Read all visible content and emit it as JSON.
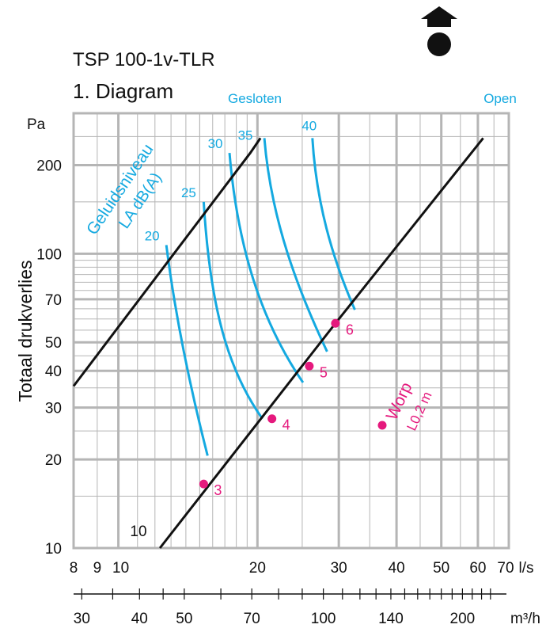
{
  "header": {
    "product": "TSP 100-1v-TLR",
    "diagram_label": "1. Diagram",
    "nav_icon": "home-up-icon"
  },
  "chart_data": {
    "type": "line",
    "x_axis": {
      "unit": "l/s",
      "scale": "log",
      "range": [
        8,
        70
      ],
      "tick_labels": [
        "8",
        "9",
        "10",
        "20",
        "30",
        "40",
        "50",
        "60",
        "70"
      ],
      "tick_values": [
        8,
        9,
        10,
        20,
        30,
        40,
        50,
        60,
        70
      ]
    },
    "x2_axis": {
      "unit": "m³/h",
      "scale": "log",
      "tick_labels": [
        "30",
        "40",
        "50",
        "70",
        "100",
        "140",
        "200"
      ],
      "tick_values": [
        30,
        40,
        50,
        70,
        100,
        140,
        200
      ]
    },
    "y_axis": {
      "label": "Totaal drukverlies",
      "unit": "Pa",
      "scale": "log",
      "range": [
        10,
        300
      ],
      "tick_labels": [
        "10",
        "20",
        "30",
        "40",
        "50",
        "70",
        "100",
        "200"
      ],
      "tick_values": [
        10,
        20,
        30,
        40,
        50,
        70,
        100,
        200
      ]
    },
    "grid": true,
    "series": [
      {
        "name": "Gesloten",
        "color": "#111111",
        "points": [
          [
            8.0,
            35.5
          ],
          [
            19.3,
            220
          ],
          [
            20.3,
            247
          ]
        ]
      },
      {
        "name": "Open",
        "color": "#111111",
        "points": [
          [
            12.3,
            10
          ],
          [
            29.5,
            58
          ],
          [
            61.6,
            247
          ]
        ]
      }
    ],
    "sound_label": "Geluidsniveau L_A dB(A)",
    "sound_curves": [
      {
        "label": "20",
        "points": [
          [
            12.7,
            107
          ],
          [
            13.5,
            50
          ],
          [
            15.6,
            20.6
          ]
        ]
      },
      {
        "label": "25",
        "points": [
          [
            15.3,
            150
          ],
          [
            15.8,
            65
          ],
          [
            17.3,
            40
          ],
          [
            20.5,
            27.5
          ]
        ]
      },
      {
        "label": "30",
        "points": [
          [
            17.4,
            220
          ],
          [
            18.2,
            95
          ],
          [
            21.0,
            55
          ],
          [
            25.1,
            36.5
          ]
        ]
      },
      {
        "label": "35",
        "points": [
          [
            20.7,
            247
          ],
          [
            21.4,
            130
          ],
          [
            24.5,
            75
          ],
          [
            28.3,
            46.5
          ]
        ]
      },
      {
        "label": "40",
        "points": [
          [
            26.3,
            247
          ],
          [
            26.8,
            150
          ],
          [
            29.0,
            97
          ],
          [
            32.5,
            64.5
          ]
        ]
      }
    ],
    "worp_label": "Worp L_0,2 m",
    "throw_points": [
      {
        "label": "3",
        "x": 15.3,
        "y": 16.5
      },
      {
        "label": "4",
        "x": 21.5,
        "y": 27.5
      },
      {
        "label": "5",
        "x": 25.9,
        "y": 41.5
      },
      {
        "label": "6",
        "x": 29.5,
        "y": 58
      }
    ],
    "colors": {
      "frame": "#111111",
      "grid": "#b5b5b5",
      "sound": "#14a9e0",
      "throw": "#e5197d"
    }
  }
}
